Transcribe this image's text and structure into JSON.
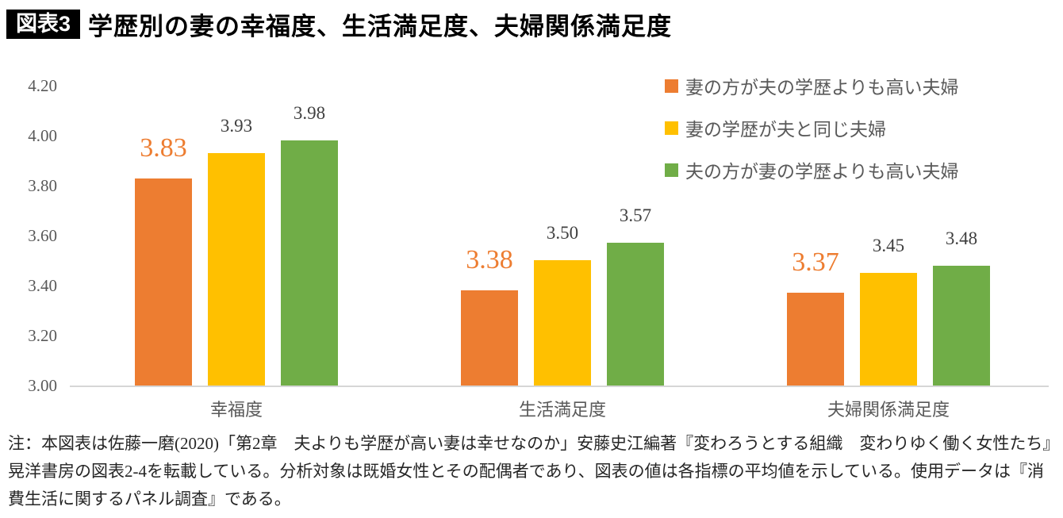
{
  "header": {
    "badge": "図表3",
    "title": "学歴別の妻の幸福度、生活満足度、夫婦関係満足度"
  },
  "chart_data": {
    "type": "bar",
    "title": "学歴別の妻の幸福度、生活満足度、夫婦関係満足度",
    "categories": [
      "幸福度",
      "生活満足度",
      "夫婦関係満足度"
    ],
    "series": [
      {
        "name": "妻の方が夫の学歴よりも高い夫婦",
        "color": "#ED7D31",
        "values": [
          3.83,
          3.38,
          3.37
        ],
        "emphasized_labels": true,
        "label_color": "#ED7D31"
      },
      {
        "name": "妻の学歴が夫と同じ夫婦",
        "color": "#FFC000",
        "values": [
          3.93,
          3.5,
          3.45
        ]
      },
      {
        "name": "夫の方が妻の学歴よりも高い夫婦",
        "color": "#70AD47",
        "values": [
          3.98,
          3.57,
          3.48
        ]
      }
    ],
    "ylim": [
      3.0,
      4.2
    ],
    "ytick_step": 0.2,
    "ytick_labels": [
      "4.20",
      "4.00",
      "3.80",
      "3.60",
      "3.40",
      "3.20",
      "3.00"
    ],
    "grid": false,
    "legend_position": "top-right",
    "value_label_decimals": 2
  },
  "colors": {
    "axis_line": "#d6d6d6",
    "axis_text": "#595959",
    "value_label_text": "#3f3f3f",
    "badge_background": "#000000",
    "badge_text": "#ffffff"
  },
  "note": "注：本図表は佐藤一磨(2020)「第2章　夫よりも学歴が高い妻は幸せなのか」安藤史江編著『変わろうとする組織　変わりゆく働く女性たち』晃洋書房の図表2-4を転載している。分析対象は既婚女性とその配偶者であり、図表の値は各指標の平均値を示している。使用データは『消費生活に関するパネル調査』である。"
}
